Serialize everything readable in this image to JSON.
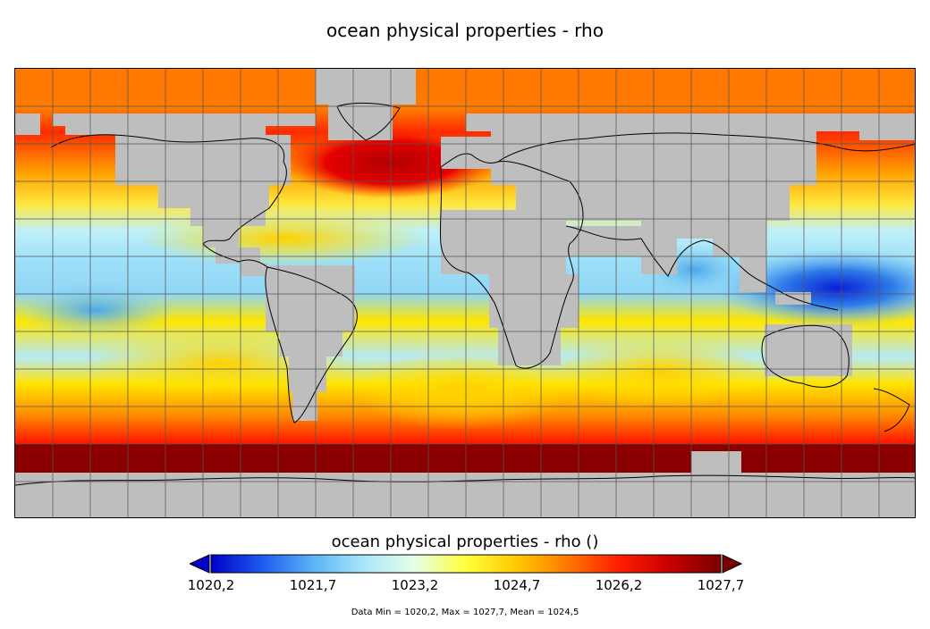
{
  "title": "ocean physical properties - rho",
  "colorbar": {
    "label": "ocean physical properties - rho ()",
    "min": 1020.2,
    "max": 1027.7,
    "ticks": [
      "1020,2",
      "1021,7",
      "1023,2",
      "1024,7",
      "1026,2",
      "1027,7"
    ],
    "colors": [
      "#0000c8",
      "#1e5af0",
      "#5ab4f5",
      "#aae6fa",
      "#e6ffe6",
      "#ffff3c",
      "#ffc800",
      "#ff7800",
      "#ff1e00",
      "#c80000",
      "#7a0000"
    ],
    "under_color": "#0000c8",
    "over_color": "#7a0000"
  },
  "stats": "Data Min = 1020,2, Max = 1027,7, Mean = 1024,5",
  "map": {
    "land_color": "#bebebe",
    "coastline_color": "#000000",
    "grid_color": "#555555",
    "grid_spacing_deg": 15
  }
}
